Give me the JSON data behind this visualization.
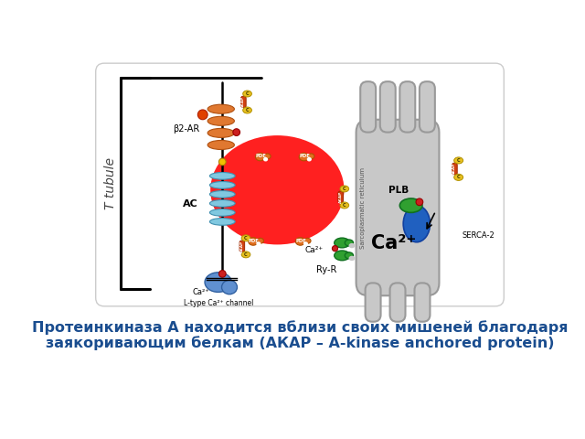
{
  "caption_line1": "Протеинкиназа А находится вблизи своих мишеней благодаря",
  "caption_line2": "заякоривающим белкам (АКАР – A-kinase anchored protein)",
  "caption_color": "#1a4d8f",
  "caption_fontsize": 11.5,
  "background_color": "#ffffff",
  "fig_width": 6.4,
  "fig_height": 4.8,
  "dpi": 100,
  "t_tubule_label": "T tubule",
  "ac_label": "AC",
  "beta2ar_label": "β2-AR",
  "ry_r_label": "Ry-R",
  "plb_label": "PLB",
  "serca2_label": "SERCA-2",
  "l_type_label": "L-type Ca²⁺ channel",
  "sr_label": "Sarcoplasmatic reticulum"
}
